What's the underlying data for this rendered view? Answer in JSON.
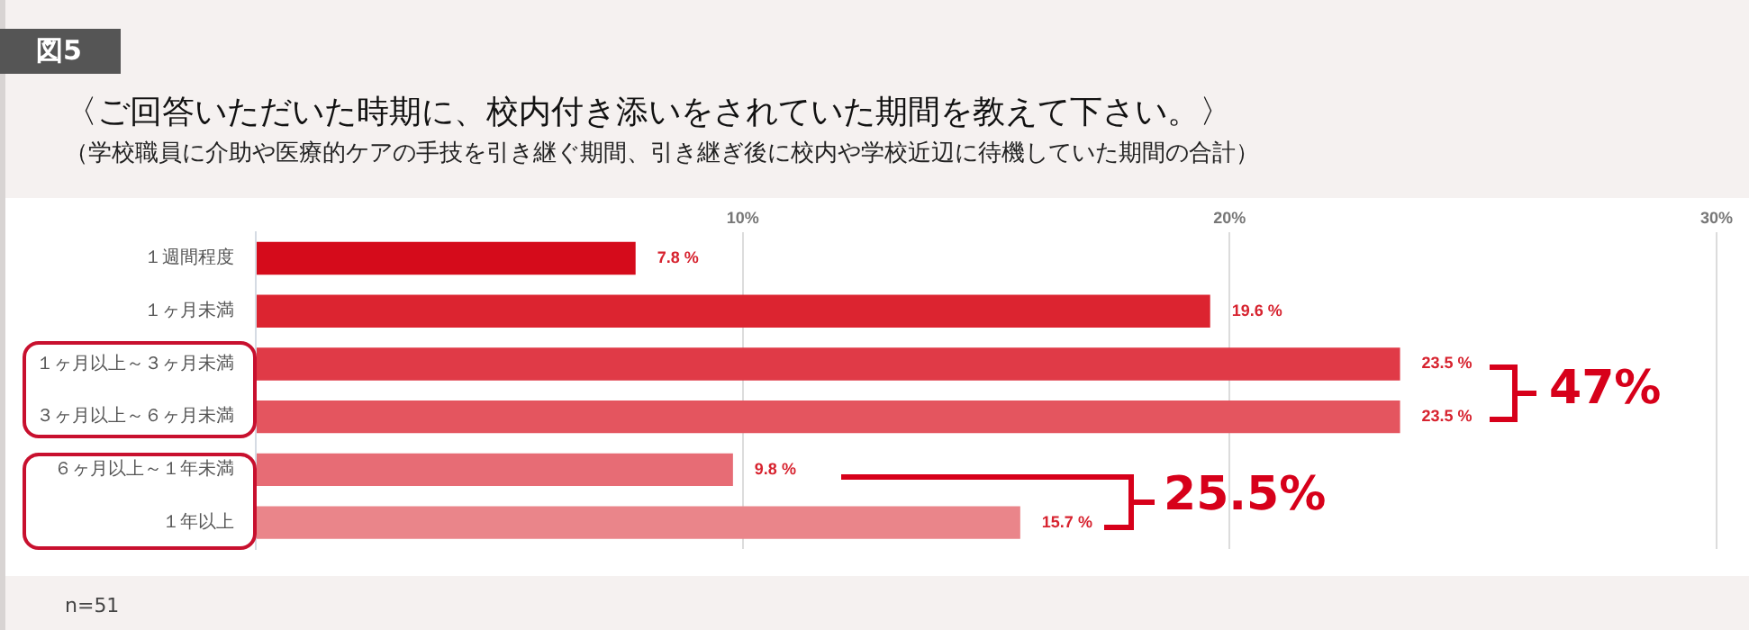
{
  "chart_data": {
    "type": "bar",
    "orientation": "horizontal",
    "title": "〈ご回答いただいた時期に、校内付き添いをされていた期間を教えて下さい。〉",
    "subtitle": "（学校職員に介助や医療的ケアの手技を引き継ぐ期間、引き継ぎ後に校内や学校近辺に待機していた期間の合計）",
    "categories": [
      "１週間程度",
      "１ヶ月未満",
      "１ヶ月以上～３ヶ月未満",
      "３ヶ月以上～６ヶ月未満",
      "６ヶ月以上～１年未満",
      "１年以上"
    ],
    "values": [
      7.8,
      19.6,
      23.5,
      23.5,
      9.8,
      15.7
    ],
    "colors": [
      "#d50b1b",
      "#dc2430",
      "#e03a47",
      "#e4555f",
      "#e76c75",
      "#ea858a"
    ],
    "value_labels": [
      "7.8 %",
      "19.6 %",
      "23.5 %",
      "23.5 %",
      "9.8 %",
      "15.7 %"
    ],
    "xlim": [
      0,
      30
    ],
    "xticks": [
      {
        "value": 0,
        "label": null
      },
      {
        "value": 10,
        "label": "10%"
      },
      {
        "value": 20,
        "label": "20%"
      },
      {
        "value": 30,
        "label": "30%"
      }
    ],
    "grid": "x",
    "legend": false,
    "annotations": [
      "図5",
      "47%",
      "25.5%",
      "n=51"
    ]
  }
}
